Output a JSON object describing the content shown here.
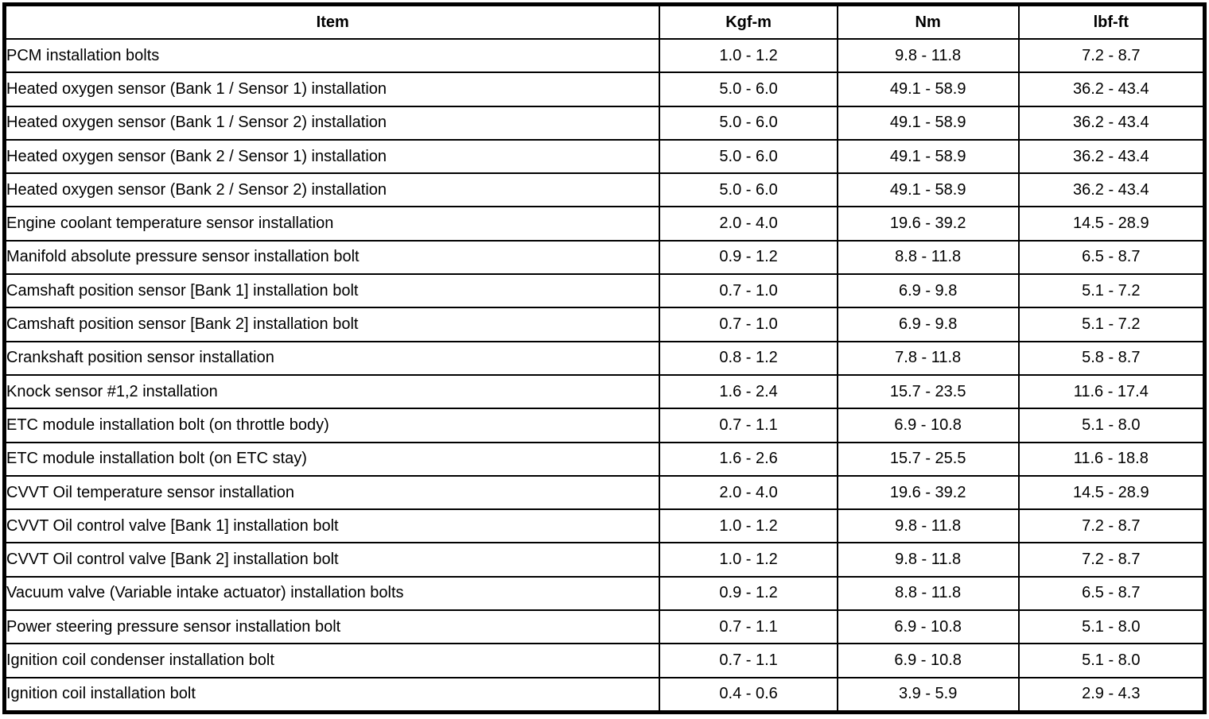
{
  "table": {
    "headers": {
      "item": "Item",
      "kgf_m": "Kgf-m",
      "nm": "Nm",
      "lbf_ft": "lbf-ft"
    },
    "rows": [
      {
        "item": "PCM installation bolts",
        "kgf_m": "1.0 - 1.2",
        "nm": "9.8 - 11.8",
        "lbf_ft": "7.2 - 8.7"
      },
      {
        "item": "Heated oxygen sensor (Bank 1 / Sensor 1) installation",
        "kgf_m": "5.0 - 6.0",
        "nm": "49.1 - 58.9",
        "lbf_ft": "36.2 - 43.4"
      },
      {
        "item": "Heated oxygen sensor (Bank 1 / Sensor 2) installation",
        "kgf_m": "5.0 - 6.0",
        "nm": "49.1 - 58.9",
        "lbf_ft": "36.2 - 43.4"
      },
      {
        "item": "Heated oxygen sensor (Bank 2 / Sensor 1) installation",
        "kgf_m": "5.0 - 6.0",
        "nm": "49.1 - 58.9",
        "lbf_ft": "36.2 - 43.4"
      },
      {
        "item": "Heated oxygen sensor (Bank 2 / Sensor 2) installation",
        "kgf_m": "5.0 - 6.0",
        "nm": "49.1 - 58.9",
        "lbf_ft": "36.2 - 43.4"
      },
      {
        "item": "Engine coolant temperature sensor installation",
        "kgf_m": "2.0 - 4.0",
        "nm": "19.6 - 39.2",
        "lbf_ft": "14.5 - 28.9"
      },
      {
        "item": "Manifold absolute pressure sensor installation bolt",
        "kgf_m": "0.9 - 1.2",
        "nm": "8.8 - 11.8",
        "lbf_ft": "6.5 - 8.7"
      },
      {
        "item": "Camshaft position sensor [Bank 1] installation bolt",
        "kgf_m": "0.7 - 1.0",
        "nm": "6.9 - 9.8",
        "lbf_ft": "5.1 - 7.2"
      },
      {
        "item": "Camshaft position sensor [Bank 2] installation bolt",
        "kgf_m": "0.7 - 1.0",
        "nm": "6.9 - 9.8",
        "lbf_ft": "5.1 - 7.2"
      },
      {
        "item": "Crankshaft position sensor installation",
        "kgf_m": "0.8 - 1.2",
        "nm": "7.8 - 11.8",
        "lbf_ft": "5.8 - 8.7"
      },
      {
        "item": "Knock sensor #1,2 installation",
        "kgf_m": "1.6 - 2.4",
        "nm": "15.7 - 23.5",
        "lbf_ft": "11.6 - 17.4"
      },
      {
        "item": "ETC module installation bolt (on throttle body)",
        "kgf_m": "0.7 - 1.1",
        "nm": "6.9 - 10.8",
        "lbf_ft": "5.1 - 8.0"
      },
      {
        "item": "ETC module installation bolt (on ETC stay)",
        "kgf_m": "1.6 - 2.6",
        "nm": "15.7 - 25.5",
        "lbf_ft": "11.6 - 18.8"
      },
      {
        "item": "CVVT Oil temperature sensor installation",
        "kgf_m": "2.0 - 4.0",
        "nm": "19.6 - 39.2",
        "lbf_ft": "14.5 - 28.9"
      },
      {
        "item": "CVVT Oil control valve [Bank 1] installation bolt",
        "kgf_m": "1.0 - 1.2",
        "nm": "9.8 - 11.8",
        "lbf_ft": "7.2 - 8.7"
      },
      {
        "item": "CVVT Oil control valve [Bank 2] installation bolt",
        "kgf_m": "1.0 - 1.2",
        "nm": "9.8 - 11.8",
        "lbf_ft": "7.2 - 8.7"
      },
      {
        "item": "Vacuum valve (Variable intake actuator) installation bolts",
        "kgf_m": "0.9 - 1.2",
        "nm": "8.8 - 11.8",
        "lbf_ft": "6.5 - 8.7"
      },
      {
        "item": "Power steering pressure sensor installation bolt",
        "kgf_m": "0.7 - 1.1",
        "nm": "6.9 - 10.8",
        "lbf_ft": "5.1 - 8.0"
      },
      {
        "item": "Ignition coil condenser installation bolt",
        "kgf_m": "0.7 - 1.1",
        "nm": "6.9 - 10.8",
        "lbf_ft": "5.1 - 8.0"
      },
      {
        "item": "Ignition coil installation bolt",
        "kgf_m": "0.4 - 0.6",
        "nm": "3.9 - 5.9",
        "lbf_ft": "2.9 - 4.3"
      }
    ]
  }
}
